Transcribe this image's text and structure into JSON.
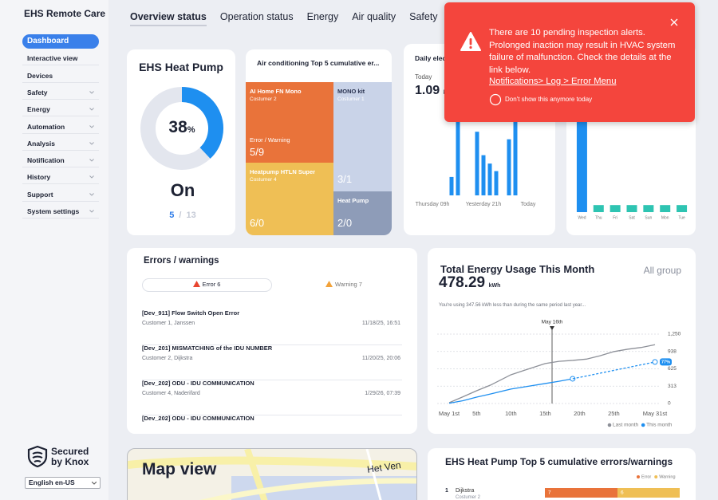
{
  "sidebar": {
    "brand": "EHS Remote Care",
    "menu": [
      {
        "label": "Dashboard",
        "active": true
      },
      {
        "label": "Interactive view"
      },
      {
        "label": "Devices"
      },
      {
        "label": "Safety",
        "submenu": true
      },
      {
        "label": "Energy",
        "submenu": true
      },
      {
        "label": "Automation",
        "submenu": true
      },
      {
        "label": "Analysis",
        "submenu": true
      },
      {
        "label": "Notification",
        "submenu": true
      },
      {
        "label": "History",
        "submenu": true
      },
      {
        "label": "Support",
        "submenu": true
      },
      {
        "label": "System settings",
        "submenu": true
      }
    ],
    "knox": [
      "Secured",
      "by Knox"
    ],
    "language": "English en-US"
  },
  "tabs": [
    {
      "label": "Overview status",
      "active": true
    },
    {
      "label": "Operation status"
    },
    {
      "label": "Energy"
    },
    {
      "label": "Air quality"
    },
    {
      "label": "Safety"
    }
  ],
  "heat_pump": {
    "title": "EHS Heat Pump",
    "percent": 38,
    "percent_unit": "%",
    "state": "On",
    "active": 5,
    "separator": "/",
    "total": 13
  },
  "treemap": {
    "title": "Air conditioning Top 5 cumulative er...",
    "cells": [
      {
        "name": "AI Home FN Mono",
        "customer": "Costumer 2",
        "caption": "Error / Warning",
        "value": "5/9"
      },
      {
        "name": "MONO kit",
        "customer": "Costumer 1",
        "value": "3/1"
      },
      {
        "name": "Heatpump HTLN Super",
        "customer": "Costumer 4",
        "value": "6/0"
      },
      {
        "name": "Heat Pump",
        "value": "2/0"
      }
    ]
  },
  "daily": {
    "title": "Daily electricity",
    "today_label": "Today",
    "today_value": 1.09,
    "unit": "kWh"
  },
  "toast": {
    "message": "There are 10 pending inspection alerts. Prolonged inaction may result in HVAC system failure of malfunction. Check the details at the link below.",
    "link": "Notifications> Log > Error Menu",
    "checkbox": "Don't show this anymore today"
  },
  "errors": {
    "title": "Errors / warnings",
    "tabs": [
      {
        "label": "Error",
        "count": 6
      },
      {
        "label": "Warning",
        "count": 7
      }
    ],
    "items": [
      {
        "title": "[Dev_911] Flow Switch Open Error",
        "customer": "Customer 1, Janssen",
        "time": "11/18/25, 16:51"
      },
      {
        "title": "[Dev_201] MISMATCHING of the IDU NUMBER",
        "customer": "Customer 2, Dijkstra",
        "time": "11/20/25, 20:06"
      },
      {
        "title": "[Dev_202] ODU - IDU COMMUNICATION",
        "customer": "Customer 4, Naderifard",
        "time": "1/29/26, 07:39"
      },
      {
        "title": "[Dev_202] ODU - IDU COMMUNICATION"
      }
    ]
  },
  "energy": {
    "title": "Total Energy Usage This Month",
    "scope": "All group",
    "total": 478.29,
    "unit": "kWh",
    "note": "You're using 347.56 kWh less than during the same period last year..."
  },
  "map": {
    "title": "Map view",
    "place": "Het Ven"
  },
  "top5": {
    "title": "EHS Heat Pump Top 5 cumulative errors/warnings",
    "rows": [
      {
        "rank": 1,
        "customer": "Costumer 2"
      }
    ]
  },
  "chart_data": [
    {
      "type": "bar",
      "categories": [
        null,
        null,
        "Thursday 09h",
        null,
        null,
        null,
        null,
        null,
        null,
        null,
        "Yesterday 21h",
        null,
        null,
        null,
        null,
        null,
        null,
        "Today",
        null,
        null
      ],
      "values": [
        0,
        0,
        0,
        0,
        0,
        22,
        90,
        0,
        0,
        76,
        48,
        38,
        29,
        0,
        67,
        89,
        0,
        0,
        0,
        0
      ],
      "color": "#1e8ff0",
      "ylim": [
        0,
        100
      ]
    },
    {
      "type": "bar",
      "categories": [
        "Wed",
        "Thu",
        "Fri",
        "Sat",
        "Sun",
        "Mon",
        "Tue"
      ],
      "values": [
        100,
        7,
        7,
        7,
        7,
        7,
        7
      ],
      "colors": [
        "#1e8ff0",
        "#2ec4b2",
        "#2ec4b2",
        "#2ec4b2",
        "#2ec4b2",
        "#2ec4b2",
        "#2ec4b2"
      ],
      "ylim": [
        0,
        100
      ]
    },
    {
      "type": "line",
      "x": [
        1,
        3,
        5,
        7,
        10,
        12,
        15,
        17,
        19,
        21,
        23,
        25,
        27,
        29,
        31
      ],
      "series": [
        {
          "name": "Last month",
          "color": "#8d9098",
          "values": [
            14,
            120,
            230,
            330,
            518,
            600,
            720,
            760,
            777,
            800,
            860,
            935,
            978,
            1010,
            1060
          ]
        },
        {
          "name": "This month",
          "color": "#1e8ff0",
          "values": [
            5,
            50,
            115,
            170,
            260,
            300,
            360,
            400,
            446,
            null,
            null,
            null,
            null,
            null,
            null
          ],
          "end_marker": true
        },
        {
          "color": "#1e8ff0",
          "dashed": true,
          "values": [
            null,
            null,
            null,
            null,
            null,
            null,
            null,
            null,
            446,
            496,
            546,
            597,
            648,
            698,
            749
          ],
          "end_marker": true,
          "end_label": "77%"
        }
      ],
      "xlim": [
        1,
        31
      ],
      "xticks": [
        {
          "value": 1,
          "label": "May 1st"
        },
        {
          "value": 5,
          "label": "5th"
        },
        {
          "value": 10,
          "label": "10th"
        },
        {
          "value": 15,
          "label": "15th"
        },
        {
          "value": 20,
          "label": "20th"
        },
        {
          "value": 25,
          "label": "25th"
        },
        {
          "value": 31,
          "label": "May 31st"
        }
      ],
      "ylim": [
        0,
        1250
      ],
      "yticks": [
        0,
        313,
        625,
        938,
        {
          "value": 1250,
          "label": "1,250"
        }
      ],
      "grid": true,
      "annotations": [
        {
          "x": 16,
          "label": "May 16th"
        }
      ],
      "legend": "bottom-right"
    },
    {
      "type": "stacked-bar-h",
      "categories": [
        "Dijkstra"
      ],
      "series": [
        {
          "name": "Error",
          "color": "#e9733a",
          "values": [
            7
          ]
        },
        {
          "name": "Warning",
          "color": "#efbf55",
          "values": [
            6
          ]
        }
      ],
      "xlim": [
        0,
        13
      ],
      "legend": "top-right"
    }
  ]
}
